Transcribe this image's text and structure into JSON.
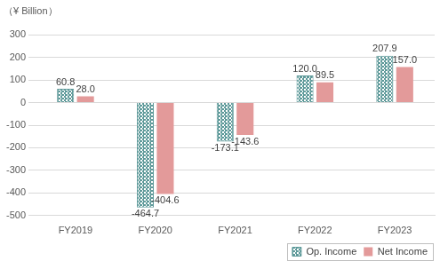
{
  "chart_data": {
    "type": "bar",
    "y_label": "（¥ Billion）",
    "categories": [
      "FY2019",
      "FY2020",
      "FY2021",
      "FY2022",
      "FY2023"
    ],
    "series": [
      {
        "name": "Op. Income",
        "color": "#5f9a9a",
        "values": [
          60.8,
          -464.7,
          -173.1,
          120.0,
          207.9
        ],
        "value_labels": [
          "60.8",
          "-464.7",
          "-173.1",
          "120.0",
          "207.9"
        ]
      },
      {
        "name": "Net Income",
        "color": "#e39a9a",
        "values": [
          28.0,
          -404.6,
          -143.6,
          89.5,
          157.0
        ],
        "value_labels": [
          "28.0",
          "-404.6",
          "-143.6",
          "89.5",
          "157.0"
        ]
      }
    ],
    "ylim": [
      -500,
      300
    ],
    "yticks": [
      -500,
      -400,
      -300,
      -200,
      -100,
      0,
      100,
      200,
      300
    ],
    "grid": true,
    "legend": "lower right",
    "data_labels": true
  }
}
